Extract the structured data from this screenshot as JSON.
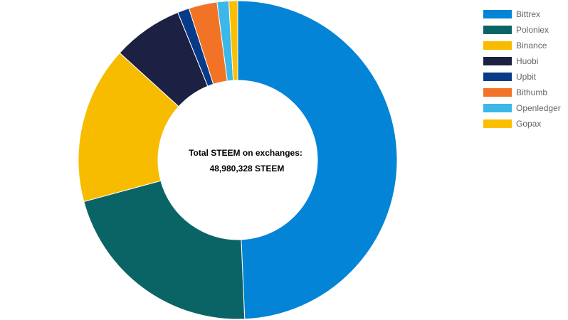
{
  "chart_data": {
    "type": "pie",
    "variant": "doughnut",
    "center_text": {
      "line1": "Total STEEM on exchanges:",
      "line2": "48,980,328 STEEM"
    },
    "legend_position": "top-right",
    "slices": [
      {
        "label": "Bittrex",
        "value": 49.8,
        "color": "#0384d6"
      },
      {
        "label": "Poloniex",
        "value": 21.7,
        "color": "#0a6466"
      },
      {
        "label": "Binance",
        "value": 16.1,
        "color": "#f7bc00"
      },
      {
        "label": "Huobi",
        "value": 7.2,
        "color": "#1c2043"
      },
      {
        "label": "Upbit",
        "value": 1.2,
        "color": "#083a8a"
      },
      {
        "label": "Bithumb",
        "value": 2.9,
        "color": "#f37326"
      },
      {
        "label": "Openledger",
        "value": 1.2,
        "color": "#3bb8e9"
      },
      {
        "label": "Gopax",
        "value": 0.9,
        "color": "#fbbf00"
      }
    ]
  }
}
